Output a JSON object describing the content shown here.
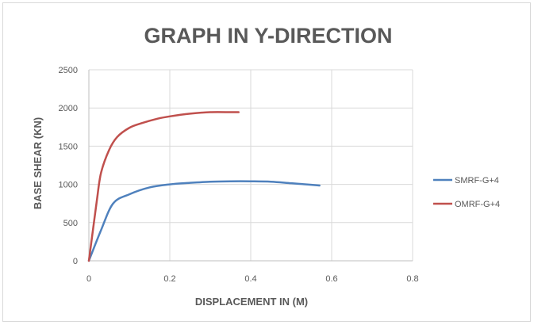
{
  "chart_data": {
    "type": "line",
    "title": "GRAPH IN Y-DIRECTION",
    "xlabel": "DISPLACEMENT IN (M)",
    "ylabel": "BASE SHEAR (KN)",
    "xlim": [
      0,
      0.8
    ],
    "ylim": [
      0,
      2500
    ],
    "xticks": [
      0,
      0.2,
      0.4,
      0.6,
      0.8
    ],
    "yticks": [
      0,
      500,
      1000,
      1500,
      2000,
      2500
    ],
    "xtick_labels": [
      "0",
      "0.2",
      "0.4",
      "0.6",
      "0.8"
    ],
    "ytick_labels": [
      "0",
      "500",
      "1000",
      "1500",
      "2000",
      "2500"
    ],
    "grid": true,
    "legend_position": "right",
    "series": [
      {
        "name": "SMRF-G+4",
        "color": "#4f81bd",
        "x": [
          0,
          0.03,
          0.06,
          0.1,
          0.15,
          0.2,
          0.25,
          0.3,
          0.35,
          0.4,
          0.45,
          0.5,
          0.55,
          0.57
        ],
        "y": [
          0,
          400,
          750,
          870,
          960,
          1000,
          1020,
          1035,
          1040,
          1040,
          1035,
          1015,
          995,
          985
        ]
      },
      {
        "name": "OMRF-G+4",
        "color": "#c0504d",
        "x": [
          0,
          0.01,
          0.02,
          0.03,
          0.05,
          0.07,
          0.1,
          0.13,
          0.17,
          0.2,
          0.25,
          0.3,
          0.35,
          0.37
        ],
        "y": [
          0,
          400,
          800,
          1150,
          1450,
          1620,
          1740,
          1800,
          1860,
          1890,
          1925,
          1945,
          1945,
          1945
        ]
      }
    ]
  }
}
